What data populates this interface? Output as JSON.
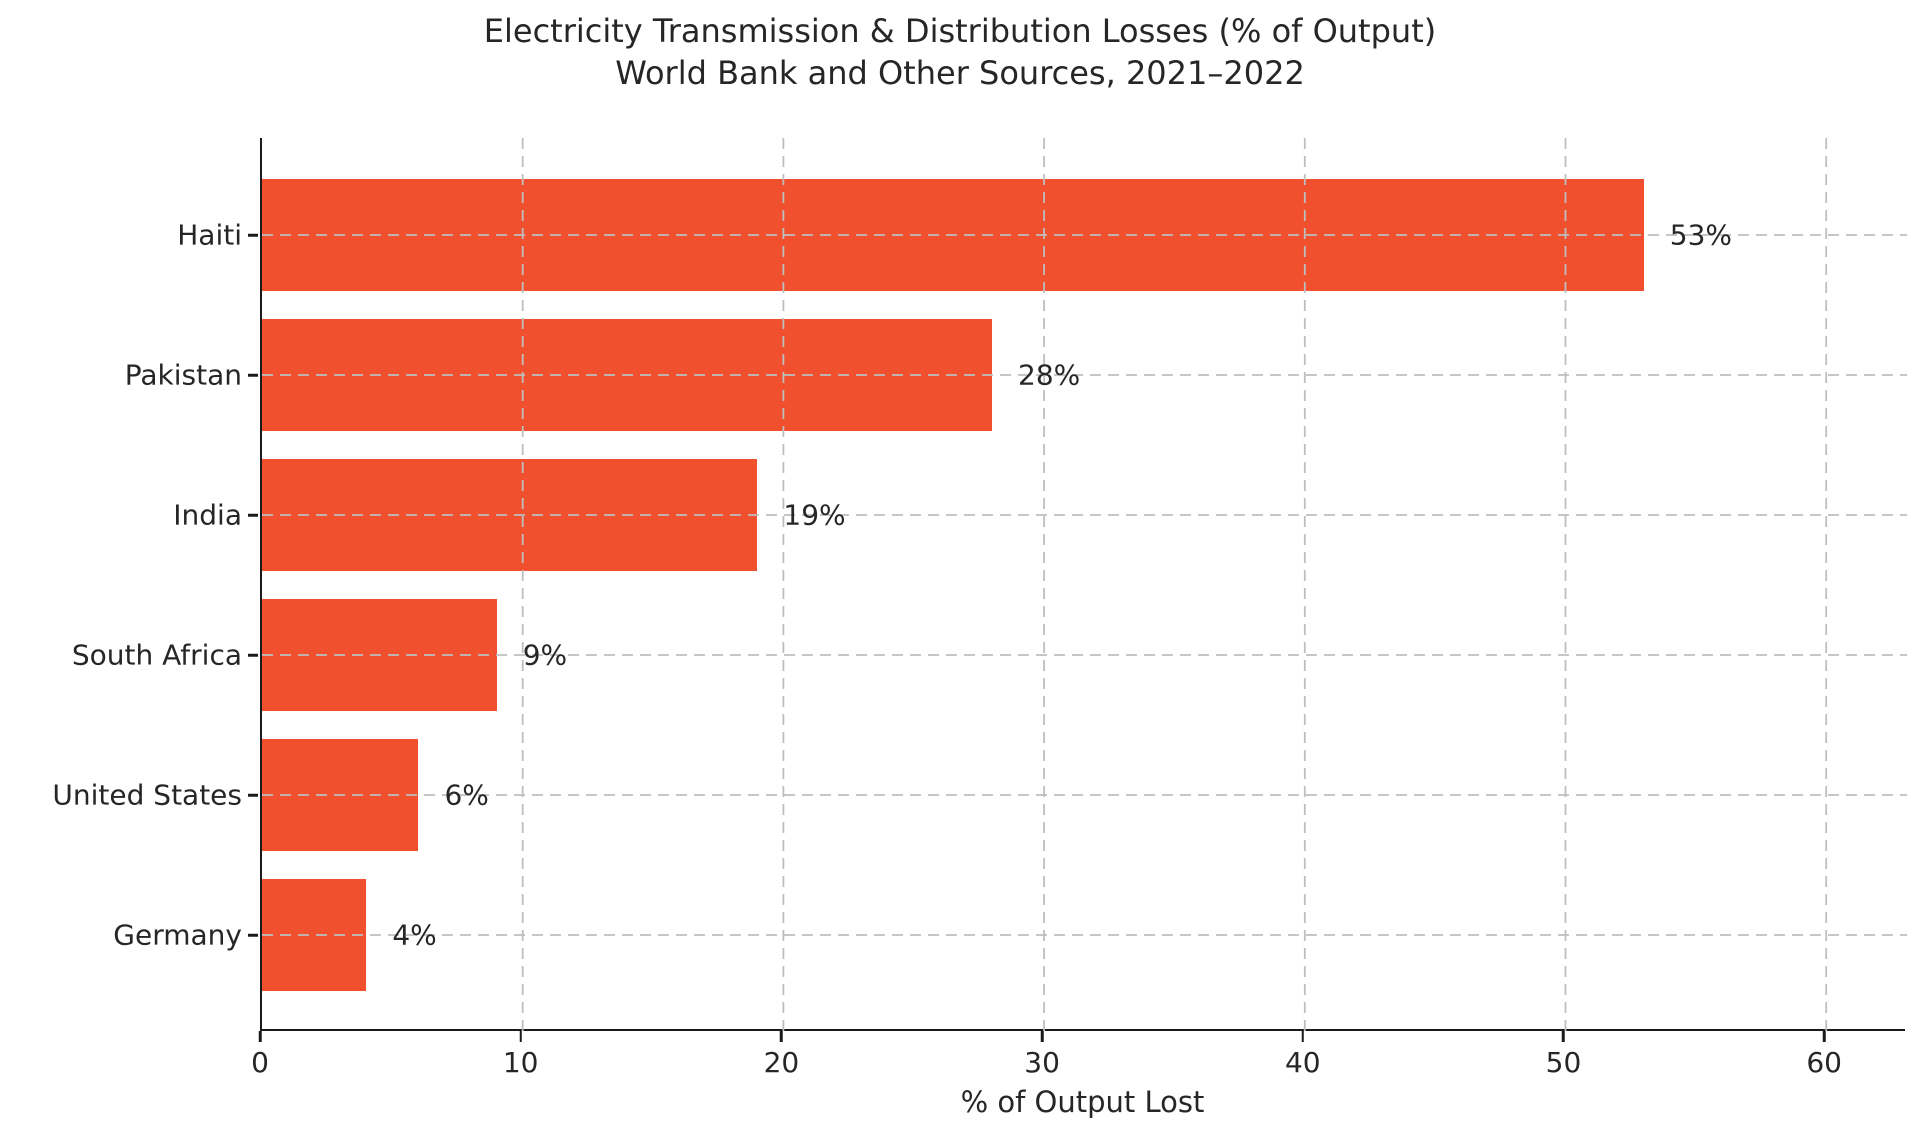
{
  "title": {
    "line1": "Electricity Transmission & Distribution Losses (% of Output)",
    "line2": "World Bank and Other Sources, 2021–2022"
  },
  "chart_data": {
    "type": "bar",
    "orientation": "horizontal",
    "title": "Electricity Transmission & Distribution Losses (% of Output)",
    "subtitle": "World Bank and Other Sources, 2021–2022",
    "categories": [
      "Haiti",
      "Pakistan",
      "India",
      "South Africa",
      "United States",
      "Germany"
    ],
    "values": [
      53,
      28,
      19,
      9,
      6,
      4
    ],
    "bar_labels": [
      "53%",
      "28%",
      "19%",
      "9%",
      "6%",
      "4%"
    ],
    "xlabel": "% of Output Lost",
    "ylabel": "",
    "x_ticks": [
      0,
      10,
      20,
      30,
      40,
      50,
      60
    ],
    "xlim": [
      0,
      63.1
    ],
    "grid": "dashed gridlines on both axes, drawn above bars",
    "legend": "none",
    "colors": {
      "bar": "#F1502E",
      "grid": "#BEBEBE",
      "text": "#262626",
      "axis": "#1A1A1A",
      "background": "#FFFFFF"
    }
  }
}
